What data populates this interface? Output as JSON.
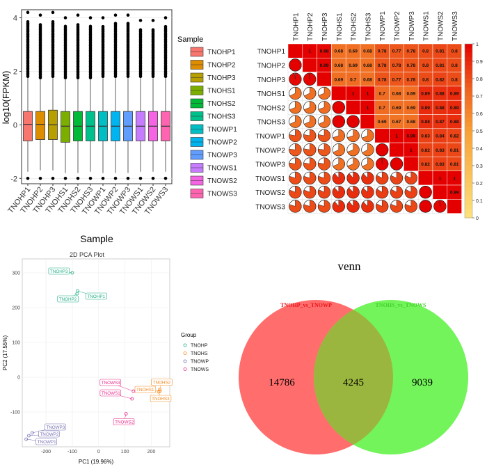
{
  "chart_data": [
    {
      "type": "box",
      "xlabel": "Sample",
      "ylabel": "log10(FPKM)",
      "ylim": [
        -2.2,
        4.3
      ],
      "yticks": [
        -2,
        0,
        2,
        4
      ],
      "legend": {
        "title": "Sample",
        "placement": "right"
      },
      "categories": [
        "TNOHP1",
        "TNOHP2",
        "TNOHP3",
        "TNOHS1",
        "TNOHS2",
        "TNOHS3",
        "TNOWP1",
        "TNOWP2",
        "TNOWP3",
        "TNOWS1",
        "TNOWS2",
        "TNOWS3"
      ],
      "colors": [
        "#F8766D",
        "#DE8C00",
        "#B79F00",
        "#7CAE00",
        "#00BA38",
        "#00C08B",
        "#00BFC4",
        "#00B4F0",
        "#619CFF",
        "#C77CFF",
        "#F564E3",
        "#FF64B0"
      ],
      "boxes": [
        {
          "q1": -0.6,
          "median": 0.02,
          "q3": 0.5,
          "whisker_low": -1.75,
          "whisker_high": 1.75,
          "max": 4.2
        },
        {
          "q1": -0.55,
          "median": 0.02,
          "q3": 0.5,
          "whisker_low": -1.7,
          "whisker_high": 1.7,
          "max": 4.1
        },
        {
          "q1": -0.55,
          "median": 0.0,
          "q3": 0.55,
          "whisker_low": -1.7,
          "whisker_high": 1.75,
          "max": 4.2
        },
        {
          "q1": -0.65,
          "median": -0.05,
          "q3": 0.5,
          "whisker_low": -1.8,
          "whisker_high": 1.7,
          "max": 4.0
        },
        {
          "q1": -0.6,
          "median": -0.05,
          "q3": 0.5,
          "whisker_low": -1.8,
          "whisker_high": 1.7,
          "max": 4.1
        },
        {
          "q1": -0.6,
          "median": -0.05,
          "q3": 0.5,
          "whisker_low": -1.75,
          "whisker_high": 1.7,
          "max": 4.0
        },
        {
          "q1": -0.6,
          "median": -0.05,
          "q3": 0.5,
          "whisker_low": -1.8,
          "whisker_high": 1.75,
          "max": 4.0
        },
        {
          "q1": -0.6,
          "median": -0.05,
          "q3": 0.5,
          "whisker_low": -1.8,
          "whisker_high": 1.75,
          "max": 4.1
        },
        {
          "q1": -0.6,
          "median": -0.05,
          "q3": 0.5,
          "whisker_low": -1.8,
          "whisker_high": 1.75,
          "max": 4.1
        },
        {
          "q1": -0.6,
          "median": -0.05,
          "q3": 0.5,
          "whisker_low": -1.75,
          "whisker_high": 1.75,
          "max": 3.9
        },
        {
          "q1": -0.6,
          "median": -0.05,
          "q3": 0.5,
          "whisker_low": -1.75,
          "whisker_high": 1.75,
          "max": 3.9
        },
        {
          "q1": -0.6,
          "median": -0.05,
          "q3": 0.5,
          "whisker_low": -1.75,
          "whisker_high": 1.75,
          "max": 4.0
        }
      ],
      "min_outlier": -2.0
    },
    {
      "type": "heatmap",
      "labels": [
        "TNOHP1",
        "TNOHP2",
        "TNOHP3",
        "TNOHS1",
        "TNOHS2",
        "TNOHS3",
        "TNOWP1",
        "TNOWP2",
        "TNOWP3",
        "TNOWS1",
        "TNOWS2",
        "TNOWS3"
      ],
      "upper_values": [
        [
          null,
          1,
          0.98,
          0.68,
          0.69,
          0.68,
          0.78,
          0.77,
          0.78,
          0.8,
          0.81,
          0.8
        ],
        [
          null,
          null,
          0.99,
          0.68,
          0.69,
          0.68,
          0.78,
          0.78,
          0.78,
          0.8,
          0.81,
          0.8
        ],
        [
          null,
          null,
          null,
          0.69,
          0.7,
          0.68,
          0.78,
          0.77,
          0.78,
          0.8,
          0.82,
          0.8
        ],
        [
          null,
          null,
          null,
          null,
          1,
          1,
          0.7,
          0.68,
          0.69,
          0.89,
          0.88,
          0.89
        ],
        [
          null,
          null,
          null,
          null,
          null,
          1,
          0.7,
          0.69,
          0.69,
          0.89,
          0.88,
          0.89
        ],
        [
          null,
          null,
          null,
          null,
          null,
          null,
          0.69,
          0.67,
          0.68,
          0.88,
          0.87,
          0.88
        ],
        [
          null,
          null,
          null,
          null,
          null,
          null,
          null,
          1,
          0.99,
          0.83,
          0.84,
          0.82
        ],
        [
          null,
          null,
          null,
          null,
          null,
          null,
          null,
          null,
          1,
          0.82,
          0.83,
          0.81
        ],
        [
          null,
          null,
          null,
          null,
          null,
          null,
          null,
          null,
          null,
          0.82,
          0.83,
          0.81
        ],
        [
          null,
          null,
          null,
          null,
          null,
          null,
          null,
          null,
          null,
          null,
          1,
          1
        ],
        [
          null,
          null,
          null,
          null,
          null,
          null,
          null,
          null,
          null,
          null,
          null,
          0.99
        ],
        [
          null,
          null,
          null,
          null,
          null,
          null,
          null,
          null,
          null,
          null,
          null,
          null
        ]
      ],
      "legend_ticks": [
        "0",
        "0.1",
        "0.2",
        "0.3",
        "0.4",
        "0.5",
        "0.6",
        "0.7",
        "0.8",
        "0.9",
        "1"
      ]
    },
    {
      "type": "scatter",
      "title": "2D PCA Plot",
      "xlabel": "PC1 (19.96%)",
      "ylabel": "PC2 (17.55%)",
      "xlim": [
        -290,
        270
      ],
      "ylim": [
        -200,
        340
      ],
      "xticks": [
        -200,
        -100,
        0,
        100,
        200
      ],
      "yticks": [
        -100,
        0,
        100,
        200,
        300
      ],
      "legend": {
        "title": "Group",
        "placement": "right",
        "entries": [
          "TNOHP",
          "TNOHS",
          "TNOWP",
          "TNOWS"
        ]
      },
      "group_colors": {
        "TNOHP": "#1FAE84",
        "TNOHS": "#F28A1E",
        "TNOWP": "#7570B3",
        "TNOWS": "#E7298A"
      },
      "points": [
        {
          "label": "TNOHP3",
          "group": "TNOHP",
          "x": -100,
          "y": 300
        },
        {
          "label": "TNOHP2",
          "group": "TNOHP",
          "x": -82,
          "y": 240
        },
        {
          "label": "TNOHP1",
          "group": "TNOHP",
          "x": -80,
          "y": 248
        },
        {
          "label": "TNOHS2",
          "group": "TNOHS",
          "x": 232,
          "y": -35
        },
        {
          "label": "TNOHS1",
          "group": "TNOHS",
          "x": 233,
          "y": -40
        },
        {
          "label": "TNOHS3",
          "group": "TNOHS",
          "x": 228,
          "y": -42
        },
        {
          "label": "TNOWS3",
          "group": "TNOWS",
          "x": 132,
          "y": -40
        },
        {
          "label": "TNOWS1",
          "group": "TNOWS",
          "x": 127,
          "y": -62
        },
        {
          "label": "TNOWS2",
          "group": "TNOWS",
          "x": 104,
          "y": -105
        },
        {
          "label": "TNOWP3",
          "group": "TNOWP",
          "x": -252,
          "y": -160
        },
        {
          "label": "TNOWP2",
          "group": "TNOWP",
          "x": -265,
          "y": -168
        },
        {
          "label": "TNOWP1",
          "group": "TNOWP",
          "x": -275,
          "y": -178
        }
      ]
    },
    {
      "type": "venn",
      "title": "venn",
      "sets": [
        {
          "name": "TNOHP_vs_TNOWP",
          "only": "14786",
          "color": "#FF6D6D"
        },
        {
          "name": "TNOHS_vs_TNOWS",
          "only": "9039",
          "color": "#73F45A"
        }
      ],
      "intersection": "4245"
    }
  ]
}
